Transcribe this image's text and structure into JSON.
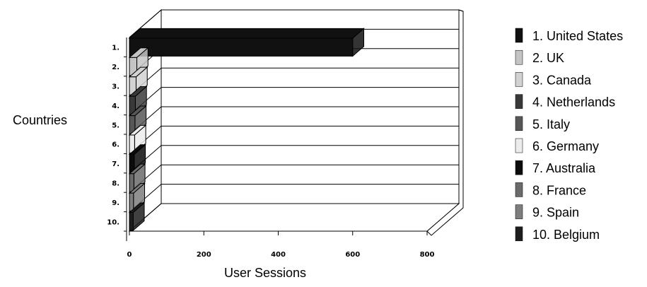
{
  "chart_data": {
    "type": "bar",
    "orientation": "horizontal",
    "style": "3d",
    "title": "",
    "xlabel": "User Sessions",
    "ylabel": "Countries",
    "xlim": [
      0,
      800
    ],
    "xticks": [
      "0",
      "200",
      "400",
      "600",
      "800"
    ],
    "grid": true,
    "legend_position": "right",
    "categories": [
      "1.",
      "2.",
      "3.",
      "4.",
      "5.",
      "6.",
      "7.",
      "8.",
      "9.",
      "10."
    ],
    "series": [
      {
        "values": [
          600,
          20,
          18,
          16,
          15,
          14,
          13,
          12,
          11,
          10
        ]
      }
    ],
    "legend": [
      {
        "label": "1. United States",
        "color": "#111111"
      },
      {
        "label": "2. UK",
        "color": "#c4c4c4"
      },
      {
        "label": "3. Canada",
        "color": "#d2d2d2"
      },
      {
        "label": "4. Netherlands",
        "color": "#393939"
      },
      {
        "label": "5. Italy",
        "color": "#575757"
      },
      {
        "label": "6. Germany",
        "color": "#ececec"
      },
      {
        "label": "7. Australia",
        "color": "#0c0c0c"
      },
      {
        "label": "8. France",
        "color": "#6b6b6b"
      },
      {
        "label": "9. Spain",
        "color": "#7e7e7e"
      },
      {
        "label": "10. Belgium",
        "color": "#1e1e1e"
      }
    ]
  }
}
